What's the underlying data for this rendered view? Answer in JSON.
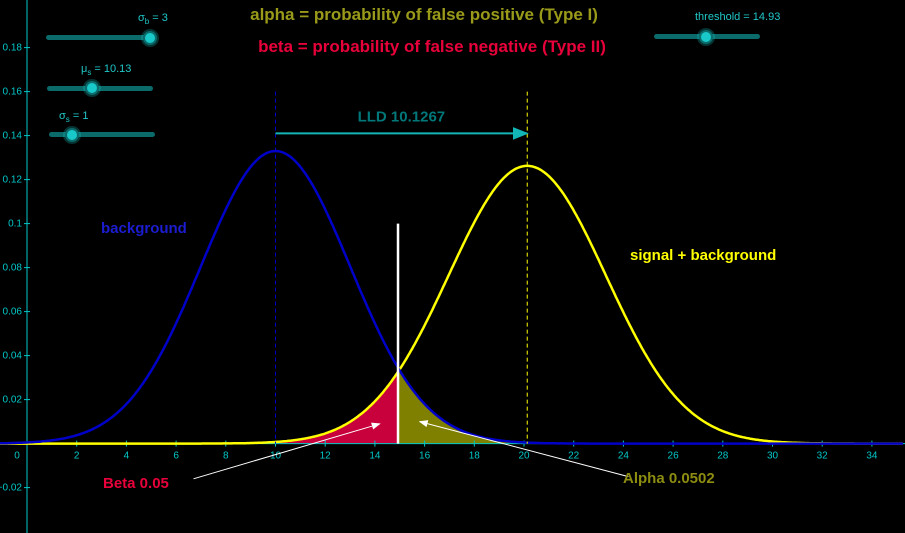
{
  "titles": {
    "alpha_line": "alpha = probability of false positive (Type I)",
    "beta_line": "beta = probability of false negative (Type II)"
  },
  "sliders": {
    "sigma_b": {
      "symbol": "σ",
      "sub": "b",
      "text": " = 3",
      "value": 3,
      "min": 0,
      "max": 3.5
    },
    "mu_s": {
      "symbol": "μ",
      "sub": "s",
      "text": " = 10.13",
      "value": 10.13,
      "min": 0,
      "max": 20
    },
    "sigma_s": {
      "symbol": "σ",
      "sub": "s",
      "text": " = 1",
      "value": 1,
      "min": 0,
      "max": 5
    },
    "threshold": {
      "text": "threshold = 14.93",
      "value": 14.93,
      "min": 0,
      "max": 25
    }
  },
  "colors": {
    "axis": "#00c8c8",
    "background_curve": "#0000c8",
    "signal_curve": "#ffff00",
    "beta_fill": "#c8003c",
    "alpha_fill": "#808000",
    "threshold_line": "#ffffff",
    "lld_arrow": "#12b6b6",
    "lld_text": "#00787a",
    "title_alpha": "#9a9a1a",
    "title_beta": "#e8003a",
    "label_background": "#1c1cd0",
    "label_signal": "#ffff00",
    "slider_text": "#20c8c8"
  },
  "chart_data": {
    "type": "line",
    "xlim": [
      0,
      35
    ],
    "ylim": [
      -0.02,
      0.18
    ],
    "x_ticks": [
      0,
      2,
      4,
      6,
      8,
      10,
      12,
      14,
      16,
      18,
      20,
      22,
      24,
      26,
      28,
      30,
      32,
      34
    ],
    "x_tick_labels": [
      "0",
      "2",
      "4",
      "6",
      "8",
      "10",
      "12",
      "14",
      "16",
      "18",
      "20",
      "22",
      "24",
      "26",
      "28",
      "30",
      "32",
      "34"
    ],
    "y_ticks": [
      -0.02,
      0.02,
      0.04,
      0.06,
      0.08,
      0.1,
      0.12,
      0.14,
      0.16,
      0.18
    ],
    "y_tick_labels": [
      "−0.02",
      "0.02",
      "0.04",
      "0.06",
      "0.08",
      "0.1",
      "0.12",
      "0.14",
      "0.16",
      "0.18"
    ],
    "series": [
      {
        "name": "background",
        "mean": 10,
        "sd": 3
      },
      {
        "name": "signal + background",
        "mean": 20.13,
        "sd": 3.16
      }
    ],
    "threshold": 14.93,
    "threshold_line_top": 0.1,
    "lld": {
      "label": "LLD  10.1267",
      "from": 10,
      "to": 20.13,
      "y": 0.141
    },
    "annotations": {
      "beta": {
        "text": "Beta 0.05",
        "value": 0.05,
        "arrow_tip": [
          14.2,
          0.009
        ],
        "arrow_tail": [
          6.7,
          -0.016
        ]
      },
      "alpha": {
        "text": "Alpha 0.0502",
        "value": 0.0502,
        "arrow_tip": [
          15.8,
          0.01
        ],
        "arrow_tail": [
          24.2,
          -0.015
        ]
      }
    },
    "grid": false
  }
}
